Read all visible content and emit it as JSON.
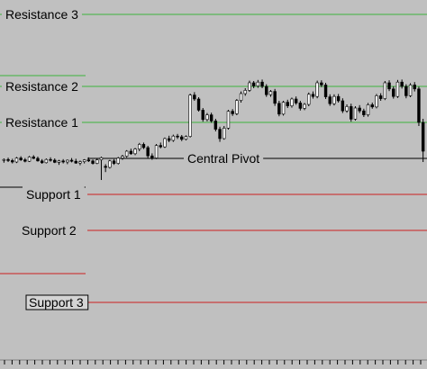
{
  "chart_data": {
    "type": "candlestick",
    "title": "",
    "xlabel": "",
    "ylabel": "",
    "grid": false,
    "ylim": [
      0,
      100
    ],
    "levels": [
      {
        "label": "Resistance 3",
        "value": 96,
        "color": "#3cb43c",
        "boxed": false
      },
      {
        "label": "Resistance 2",
        "value": 76,
        "color": "#3cb43c",
        "boxed": false
      },
      {
        "label": "Resistance 1",
        "value": 66,
        "color": "#3cb43c",
        "boxed": false
      },
      {
        "label": "Central Pivot",
        "value": 56,
        "color": "#000000",
        "boxed": false
      },
      {
        "label": "Support 1",
        "value": 46,
        "color": "#cc2020",
        "boxed": false
      },
      {
        "label": "Support 2",
        "value": 36,
        "color": "#cc2020",
        "boxed": false
      },
      {
        "label": "Support 3",
        "value": 16,
        "color": "#cc2020",
        "boxed": true
      }
    ],
    "previous_levels": [
      {
        "value": 79,
        "color": "#3cb43c"
      },
      {
        "value": 66,
        "color": "#3cb43c"
      },
      {
        "value": 48,
        "color": "#000000"
      },
      {
        "value": 24,
        "color": "#cc2020"
      }
    ],
    "candles": [
      [
        55.5,
        56.0,
        54.8,
        55.7
      ],
      [
        55.7,
        56.2,
        55.0,
        55.4
      ],
      [
        55.4,
        55.9,
        54.6,
        55.0
      ],
      [
        55.0,
        56.4,
        54.7,
        56.1
      ],
      [
        56.1,
        56.6,
        55.3,
        55.6
      ],
      [
        55.6,
        56.1,
        54.9,
        55.2
      ],
      [
        55.2,
        56.7,
        55.0,
        56.4
      ],
      [
        56.4,
        56.9,
        55.8,
        56.0
      ],
      [
        56.0,
        56.5,
        55.1,
        55.3
      ],
      [
        55.3,
        55.8,
        54.5,
        54.8
      ],
      [
        54.8,
        56.0,
        54.6,
        55.7
      ],
      [
        55.7,
        56.3,
        55.1,
        55.5
      ],
      [
        55.5,
        56.0,
        54.7,
        54.9
      ],
      [
        54.9,
        55.6,
        54.2,
        55.3
      ],
      [
        55.3,
        55.8,
        54.6,
        55.0
      ],
      [
        55.0,
        55.7,
        54.4,
        55.5
      ],
      [
        55.5,
        56.1,
        54.9,
        55.2
      ],
      [
        55.2,
        55.9,
        54.5,
        54.7
      ],
      [
        54.7,
        55.4,
        54.1,
        55.1
      ],
      [
        55.1,
        55.8,
        54.6,
        55.6
      ],
      [
        55.6,
        56.3,
        55.0,
        55.3
      ],
      [
        55.3,
        55.7,
        54.3,
        54.6
      ],
      [
        54.6,
        55.9,
        54.4,
        55.6
      ],
      [
        55.6,
        56.5,
        50.0,
        56.2
      ],
      [
        53.8,
        54.4,
        52.2,
        53.5
      ],
      [
        53.5,
        55.6,
        53.2,
        55.3
      ],
      [
        55.3,
        55.8,
        54.2,
        54.6
      ],
      [
        54.6,
        56.4,
        54.3,
        56.1
      ],
      [
        56.1,
        57.0,
        55.6,
        56.6
      ],
      [
        56.6,
        58.3,
        56.2,
        58.0
      ],
      [
        58.0,
        58.7,
        57.0,
        57.3
      ],
      [
        57.3,
        58.9,
        56.9,
        58.6
      ],
      [
        58.6,
        60.3,
        58.0,
        59.9
      ],
      [
        59.9,
        60.4,
        58.6,
        59.0
      ],
      [
        59.0,
        59.5,
        56.0,
        56.7
      ],
      [
        56.7,
        57.4,
        55.6,
        56.1
      ],
      [
        56.1,
        60.0,
        55.8,
        59.6
      ],
      [
        59.6,
        60.4,
        58.8,
        59.2
      ],
      [
        59.2,
        61.8,
        58.9,
        61.5
      ],
      [
        61.5,
        62.3,
        60.5,
        61.0
      ],
      [
        61.0,
        62.6,
        60.6,
        62.2
      ],
      [
        62.2,
        62.8,
        61.4,
        62.0
      ],
      [
        62.0,
        62.5,
        60.8,
        61.3
      ],
      [
        61.3,
        62.4,
        61.0,
        62.1
      ],
      [
        62.1,
        74.0,
        61.8,
        73.6
      ],
      [
        73.6,
        74.4,
        72.0,
        72.5
      ],
      [
        72.5,
        73.0,
        69.0,
        69.4
      ],
      [
        69.4,
        70.0,
        66.2,
        66.8
      ],
      [
        66.8,
        68.6,
        66.3,
        68.1
      ],
      [
        68.1,
        68.7,
        65.9,
        66.4
      ],
      [
        66.4,
        67.0,
        63.5,
        64.1
      ],
      [
        64.1,
        64.8,
        60.6,
        61.5
      ],
      [
        61.5,
        65.0,
        61.2,
        64.4
      ],
      [
        64.4,
        69.5,
        64.0,
        69.1
      ],
      [
        69.1,
        69.7,
        67.8,
        68.4
      ],
      [
        68.4,
        72.5,
        68.0,
        72.1
      ],
      [
        72.1,
        74.6,
        71.5,
        74.0
      ],
      [
        74.0,
        75.5,
        73.4,
        74.9
      ],
      [
        74.9,
        77.6,
        74.5,
        77.0
      ],
      [
        77.0,
        77.5,
        75.5,
        76.1
      ],
      [
        76.1,
        77.8,
        75.6,
        77.2
      ],
      [
        77.2,
        77.9,
        75.5,
        76.0
      ],
      [
        76.0,
        76.6,
        73.1,
        73.7
      ],
      [
        73.7,
        75.0,
        73.1,
        74.6
      ],
      [
        74.6,
        75.3,
        70.6,
        71.3
      ],
      [
        71.3,
        72.0,
        67.7,
        68.3
      ],
      [
        68.3,
        72.0,
        67.9,
        71.6
      ],
      [
        71.6,
        72.3,
        70.0,
        70.6
      ],
      [
        70.6,
        72.9,
        70.1,
        72.5
      ],
      [
        72.5,
        73.2,
        70.9,
        71.4
      ],
      [
        71.4,
        72.0,
        69.3,
        69.9
      ],
      [
        69.9,
        71.4,
        69.4,
        71.0
      ],
      [
        71.0,
        74.3,
        70.5,
        73.8
      ],
      [
        73.8,
        74.6,
        72.6,
        73.2
      ],
      [
        73.2,
        77.6,
        72.7,
        77.0
      ],
      [
        77.0,
        77.7,
        75.8,
        76.4
      ],
      [
        76.4,
        77.0,
        72.5,
        73.1
      ],
      [
        73.1,
        73.8,
        70.6,
        71.2
      ],
      [
        71.2,
        73.8,
        70.7,
        73.2
      ],
      [
        73.2,
        73.9,
        71.5,
        72.0
      ],
      [
        72.0,
        72.7,
        68.6,
        69.2
      ],
      [
        69.2,
        71.0,
        68.7,
        70.4
      ],
      [
        70.4,
        71.2,
        66.2,
        66.9
      ],
      [
        66.9,
        70.5,
        66.5,
        70.0
      ],
      [
        70.0,
        70.8,
        68.6,
        69.2
      ],
      [
        69.2,
        69.8,
        67.5,
        68.1
      ],
      [
        68.1,
        71.4,
        67.6,
        70.9
      ],
      [
        70.9,
        71.5,
        69.8,
        70.3
      ],
      [
        70.3,
        73.9,
        69.9,
        73.4
      ],
      [
        73.4,
        74.1,
        72.0,
        72.6
      ],
      [
        72.6,
        77.5,
        72.2,
        77.0
      ],
      [
        77.0,
        77.7,
        74.7,
        75.3
      ],
      [
        75.3,
        76.0,
        72.6,
        73.2
      ],
      [
        73.2,
        77.8,
        72.8,
        77.2
      ],
      [
        77.2,
        77.9,
        75.4,
        76.0
      ],
      [
        76.0,
        76.6,
        72.7,
        73.4
      ],
      [
        73.4,
        76.9,
        73.0,
        76.4
      ],
      [
        76.4,
        77.2,
        74.6,
        75.3
      ],
      [
        75.3,
        75.9,
        65.0,
        66.0
      ],
      [
        66.0,
        67.0,
        55.0,
        58.0
      ]
    ]
  }
}
